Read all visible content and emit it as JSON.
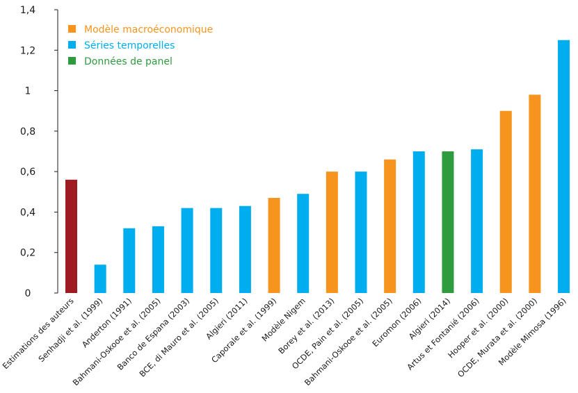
{
  "chart_data": {
    "type": "bar",
    "title": "",
    "xlabel": "",
    "ylabel": "",
    "ylim": [
      0,
      1.4
    ],
    "y_ticks": [
      {
        "value": 0,
        "label": "0"
      },
      {
        "value": 0.2,
        "label": "0,2"
      },
      {
        "value": 0.4,
        "label": "0,4"
      },
      {
        "value": 0.6,
        "label": "0,6"
      },
      {
        "value": 0.8,
        "label": "0,8"
      },
      {
        "value": 1.0,
        "label": "1"
      },
      {
        "value": 1.2,
        "label": "1,2"
      },
      {
        "value": 1.4,
        "label": "1,4"
      }
    ],
    "grid": false,
    "legend_position": "top-left",
    "legend": [
      {
        "key": "macro",
        "label": "Modèle macroéconomique",
        "color": "#F7941D"
      },
      {
        "key": "series",
        "label": "Séries temporelles",
        "color": "#00AEEF"
      },
      {
        "key": "panel",
        "label": "Données de panel",
        "color": "#2E9B3F"
      }
    ],
    "authors_color": "#9E1B22",
    "categories": [
      "Estimations des auteurs",
      "Senhadji et al. (1999)",
      "Anderton (1991)",
      "Bahmani-Oskooe et al. (2005)",
      "Banco de Espana (2003)",
      "BCE, di Mauro et al. (2005)",
      "Algieri (2011)",
      "Caporale et al. (1999)",
      "Modèle Nigem",
      "Borey et al. (2013)",
      "OCDE, Pain et al. (2005)",
      "Bahmani-Oskooe et al. (2005)",
      "Euromon (2006)",
      "Algieri (2014)",
      "Artus et Fontanié (2006)",
      "Hooper et al. (2000)",
      "OCDE, Murata et al. (2000)",
      "Modèle Mimosa (1996)"
    ],
    "values": [
      0.56,
      0.14,
      0.32,
      0.33,
      0.42,
      0.42,
      0.43,
      0.47,
      0.49,
      0.6,
      0.6,
      0.66,
      0.7,
      0.7,
      0.71,
      0.9,
      0.98,
      1.25
    ],
    "groups": [
      "authors",
      "series",
      "series",
      "series",
      "series",
      "series",
      "series",
      "macro",
      "series",
      "macro",
      "series",
      "macro",
      "series",
      "panel",
      "series",
      "macro",
      "macro",
      "series"
    ]
  }
}
